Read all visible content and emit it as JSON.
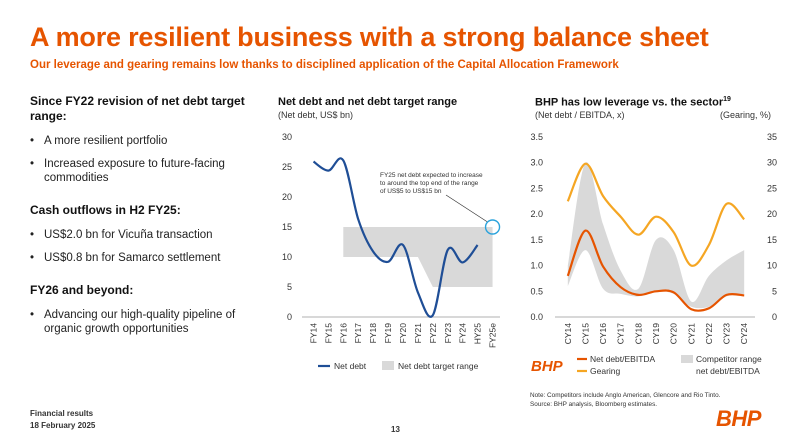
{
  "header": {
    "title": "A more resilient business with a strong balance sheet",
    "subtitle": "Our leverage and gearing remains low thanks to disciplined application of the Capital Allocation Framework"
  },
  "left": {
    "section1": {
      "heading": "Since FY22 revision of net debt target range:",
      "bullets": [
        "A more resilient portfolio",
        "Increased exposure to future-facing commodities"
      ]
    },
    "section2": {
      "heading": "Cash outflows in H2 FY25:",
      "bullets": [
        "US$2.0 bn for Vicuña transaction",
        "US$0.8 bn for Samarco settlement"
      ]
    },
    "section3": {
      "heading": "FY26 and beyond:",
      "bullets": [
        "Advancing our high-quality pipeline of organic growth opportunities"
      ]
    }
  },
  "chart1": {
    "title": "Net debt and net debt target range",
    "subtitle": "(Net debt, US$ bn)"
  },
  "chart2": {
    "title": "BHP has low leverage vs. the sector",
    "title_sup": "19",
    "subtitle_left": "(Net debt / EBITDA, x)",
    "subtitle_right": "(Gearing, %)"
  },
  "chart_data": [
    {
      "type": "line",
      "title": "Net debt and net debt target range",
      "ylabel": "(Net debt, US$ bn)",
      "x": [
        "FY14",
        "FY15",
        "FY16",
        "FY17",
        "FY18",
        "FY19",
        "FY20",
        "FY21",
        "FY22",
        "FY23",
        "FY24",
        "HY25",
        "FY25e"
      ],
      "ylim": [
        0,
        30
      ],
      "yticks": [
        0,
        5,
        10,
        15,
        20,
        25,
        30
      ],
      "series": [
        {
          "name": "Net debt",
          "color": "#1F4E96",
          "values": [
            25.9,
            24.4,
            26.1,
            16.3,
            10.9,
            9.2,
            12.0,
            4.1,
            0.3,
            11.2,
            9.1,
            12.0,
            null
          ]
        }
      ],
      "band": {
        "name": "Net debt target range",
        "color": "#D9D9D9",
        "lower": [
          null,
          null,
          10,
          10,
          10,
          10,
          10,
          10,
          5,
          5,
          5,
          5,
          5
        ],
        "upper": [
          null,
          null,
          15,
          15,
          15,
          15,
          15,
          15,
          15,
          15,
          15,
          15,
          15
        ]
      },
      "annotation": {
        "text": [
          "FY25 net debt expected to increase",
          "to around the top end of the range",
          "of US$5 to US$15 bn"
        ],
        "target_x": "FY25e",
        "target_y": 15,
        "highlight_color": "#2BA3DC"
      },
      "legend": {
        "placement": "bottom",
        "entries": [
          "Net debt",
          "Net debt target range"
        ]
      }
    },
    {
      "type": "line",
      "title": "BHP has low leverage vs. the sector",
      "ylabel": "(Net debt / EBITDA, x)",
      "ylabel_right": "(Gearing, %)",
      "x": [
        "CY14",
        "CY15",
        "CY16",
        "CY17",
        "CY18",
        "CY19",
        "CY20",
        "CY21",
        "CY22",
        "CY23",
        "CY24"
      ],
      "ylim": [
        0,
        3.5
      ],
      "yticks": [
        0.0,
        0.5,
        1.0,
        1.5,
        2.0,
        2.5,
        3.0,
        3.5
      ],
      "ylim_right": [
        0,
        35
      ],
      "yticks_right": [
        0,
        5,
        10,
        15,
        20,
        25,
        30,
        35
      ],
      "series": [
        {
          "name": "Net debt/EBITDA",
          "color": "#E65400",
          "axis": "left",
          "values": [
            0.8,
            1.68,
            0.98,
            0.58,
            0.43,
            0.5,
            0.48,
            0.15,
            0.17,
            0.43,
            0.42
          ]
        },
        {
          "name": "Gearing",
          "color": "#F5A623",
          "axis": "right",
          "values": [
            22.5,
            29.8,
            23.5,
            19.5,
            16.0,
            19.5,
            16.5,
            10.0,
            14.0,
            22.0,
            19.0
          ]
        }
      ],
      "band": {
        "name": "Competitor range net debt/EBITDA",
        "color": "#D9D9D9",
        "lower": [
          0.6,
          1.3,
          0.55,
          0.45,
          0.4,
          0.5,
          0.45,
          0.2,
          0.2,
          0.4,
          0.45
        ],
        "upper": [
          1.0,
          3.0,
          1.8,
          0.9,
          0.55,
          1.5,
          1.3,
          0.3,
          0.8,
          1.1,
          1.3
        ]
      },
      "legend": {
        "placement": "bottom",
        "entries": [
          "Net debt/EBITDA",
          "Gearing",
          "Competitor range",
          "net debt/EBITDA"
        ]
      }
    }
  ],
  "legend_logo": "BHP",
  "notes": {
    "line1": "Note: Competitors include Anglo American, Glencore and Rio Tinto.",
    "line2": "Source: BHP analysis, Bloomberg estimates."
  },
  "footer": {
    "line1": "Financial results",
    "line2": "18 February 2025",
    "page": "13",
    "logo": "BHP"
  },
  "colors": {
    "accent": "#E65400",
    "netdebt": "#1F4E96",
    "band": "#D9D9D9",
    "gearing": "#F5A623",
    "highlight": "#2BA3DC"
  }
}
